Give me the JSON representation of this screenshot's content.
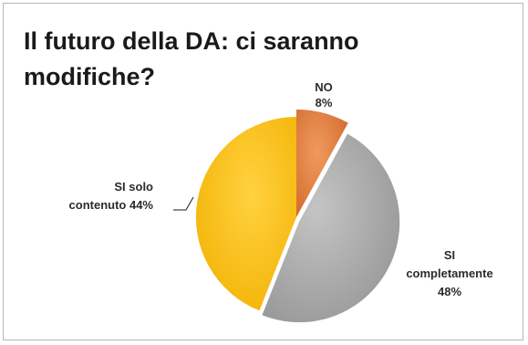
{
  "chart_data": {
    "type": "pie",
    "title_lines": [
      "Il futuro della DA: ci saranno",
      "modifiche?"
    ],
    "slices": [
      {
        "label_lines": [
          "NO",
          "8%"
        ],
        "value": 8,
        "color": "#e07b39"
      },
      {
        "label_lines": [
          "SI",
          "completamente",
          "48%"
        ],
        "value": 48,
        "color": "#a5a5a5"
      },
      {
        "label_lines": [
          "SI solo",
          "contenuto 44%"
        ],
        "value": 44,
        "color": "#ffc000"
      }
    ],
    "exploded": true,
    "legend": "none"
  }
}
